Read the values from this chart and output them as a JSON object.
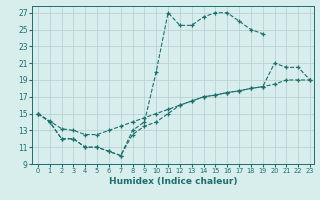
{
  "xlabel": "Humidex (Indice chaleur)",
  "xlim": [
    -0.5,
    23.3
  ],
  "ylim": [
    9,
    27.8
  ],
  "xticks": [
    0,
    1,
    2,
    3,
    4,
    5,
    6,
    7,
    8,
    9,
    10,
    11,
    12,
    13,
    14,
    15,
    16,
    17,
    18,
    19,
    20,
    21,
    22,
    23
  ],
  "yticks": [
    9,
    11,
    13,
    15,
    17,
    19,
    21,
    23,
    25,
    27
  ],
  "background_color": "#d8eeed",
  "grid_color": "#b2cecc",
  "line_color": "#1e6e6e",
  "line1_x": [
    0,
    1,
    2,
    3,
    4,
    5,
    6,
    7,
    8,
    9,
    10,
    11,
    12,
    13,
    14,
    15,
    16,
    17,
    18,
    19
  ],
  "line1_y": [
    15,
    14,
    12,
    12,
    11,
    11,
    10.5,
    10,
    13,
    14,
    20,
    27,
    25.5,
    25.5,
    26.5,
    27,
    27,
    26,
    25,
    24.5
  ],
  "line2_x": [
    0,
    1,
    2,
    3,
    4,
    5,
    6,
    7,
    8,
    9,
    10,
    11,
    12,
    13,
    14,
    15,
    16,
    17,
    18,
    19,
    20,
    21,
    22,
    23
  ],
  "line2_y": [
    15,
    14.1,
    13.2,
    13,
    12.5,
    12.5,
    13,
    13.5,
    14,
    14.5,
    15,
    15.5,
    16,
    16.5,
    17,
    17.2,
    17.5,
    17.7,
    18,
    18.2,
    18.5,
    19,
    19,
    19
  ],
  "line3_x": [
    0,
    1,
    2,
    3,
    4,
    5,
    6,
    7,
    8,
    9,
    10,
    11,
    12,
    13,
    14,
    15,
    16,
    17,
    18,
    19,
    20,
    21,
    22,
    23
  ],
  "line3_y": [
    15,
    14,
    12,
    12,
    11,
    11,
    10.5,
    10,
    12.5,
    13.5,
    14,
    15,
    16,
    16.5,
    17,
    17.2,
    17.5,
    17.7,
    18,
    18.2,
    21,
    20.5,
    20.5,
    19
  ]
}
